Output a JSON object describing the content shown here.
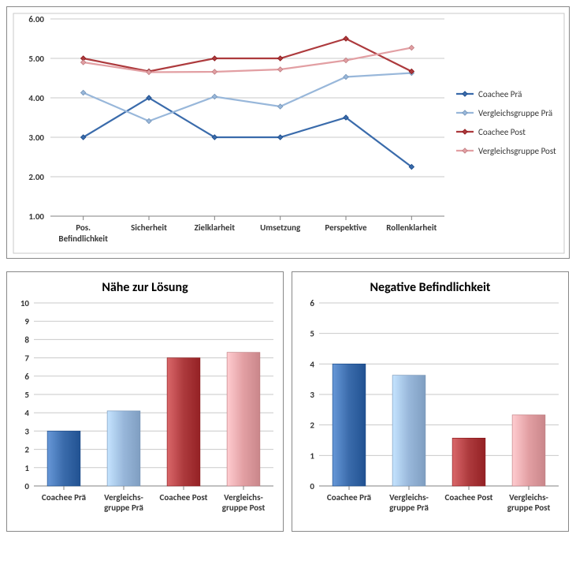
{
  "line_chart": {
    "type": "line",
    "background_color": "#ffffff",
    "border_color": "#888888",
    "grid_color": "#cacaca",
    "label_fontsize": 11,
    "label_color": "#363636",
    "ylim": [
      1.0,
      6.0
    ],
    "ytick_step": 1.0,
    "ytick_format": "0.00",
    "categories": [
      "Pos. Befindlichkeit",
      "Sicherheit",
      "Zielklarheit",
      "Umsetzung",
      "Perspektive",
      "Rollenklarheit"
    ],
    "series": [
      {
        "name": "Coachee Prä",
        "color": "#3a6bab",
        "line_width": 2.2,
        "marker": "diamond",
        "values": [
          3.0,
          4.0,
          3.0,
          3.0,
          3.5,
          2.25
        ]
      },
      {
        "name": "Vergleichsgruppe Prä",
        "color": "#98b7da",
        "line_width": 2.2,
        "marker": "diamond",
        "values": [
          4.13,
          3.41,
          4.03,
          3.78,
          4.53,
          4.63
        ]
      },
      {
        "name": "Coachee Post",
        "color": "#ad3a3d",
        "line_width": 2.2,
        "marker": "diamond",
        "values": [
          5.0,
          4.67,
          5.0,
          5.0,
          5.5,
          4.67
        ]
      },
      {
        "name": "Vergleichsgruppe Post",
        "color": "#e29fa3",
        "line_width": 2.2,
        "marker": "diamond",
        "values": [
          4.9,
          4.65,
          4.66,
          4.72,
          4.95,
          5.27
        ]
      }
    ],
    "legend_position": "right"
  },
  "bar_left": {
    "type": "bar",
    "title": "Nähe zur Lösung",
    "title_fontsize": 16,
    "title_weight": "bold",
    "ylim": [
      0,
      10
    ],
    "ytick_step": 1,
    "categories": [
      "Coachee Prä",
      "Vergleichs-\\ngruppe Prä",
      "Coachee Post",
      "Vergleichs-\\ngruppe Post"
    ],
    "values": [
      3.0,
      4.1,
      7.0,
      7.3
    ],
    "bar_colors": [
      "#3a6bab",
      "#98b7da",
      "#ad3a3d",
      "#e29fa3"
    ],
    "bar_width": 0.55,
    "grid_color": "#cacaca",
    "label_fontsize": 11
  },
  "bar_right": {
    "type": "bar",
    "title": "Negative Befindlichkeit",
    "title_fontsize": 16,
    "title_weight": "bold",
    "ylim": [
      0,
      6
    ],
    "ytick_step": 1,
    "categories": [
      "Coachee Prä",
      "Vergleichs-\\ngruppe Prä",
      "Coachee Post",
      "Vergleichs-\\ngruppe Post"
    ],
    "values": [
      4.0,
      3.63,
      1.57,
      2.33
    ],
    "bar_colors": [
      "#3a6bab",
      "#98b7da",
      "#ad3a3d",
      "#e29fa3"
    ],
    "bar_width": 0.55,
    "grid_color": "#cacaca",
    "label_fontsize": 11
  }
}
